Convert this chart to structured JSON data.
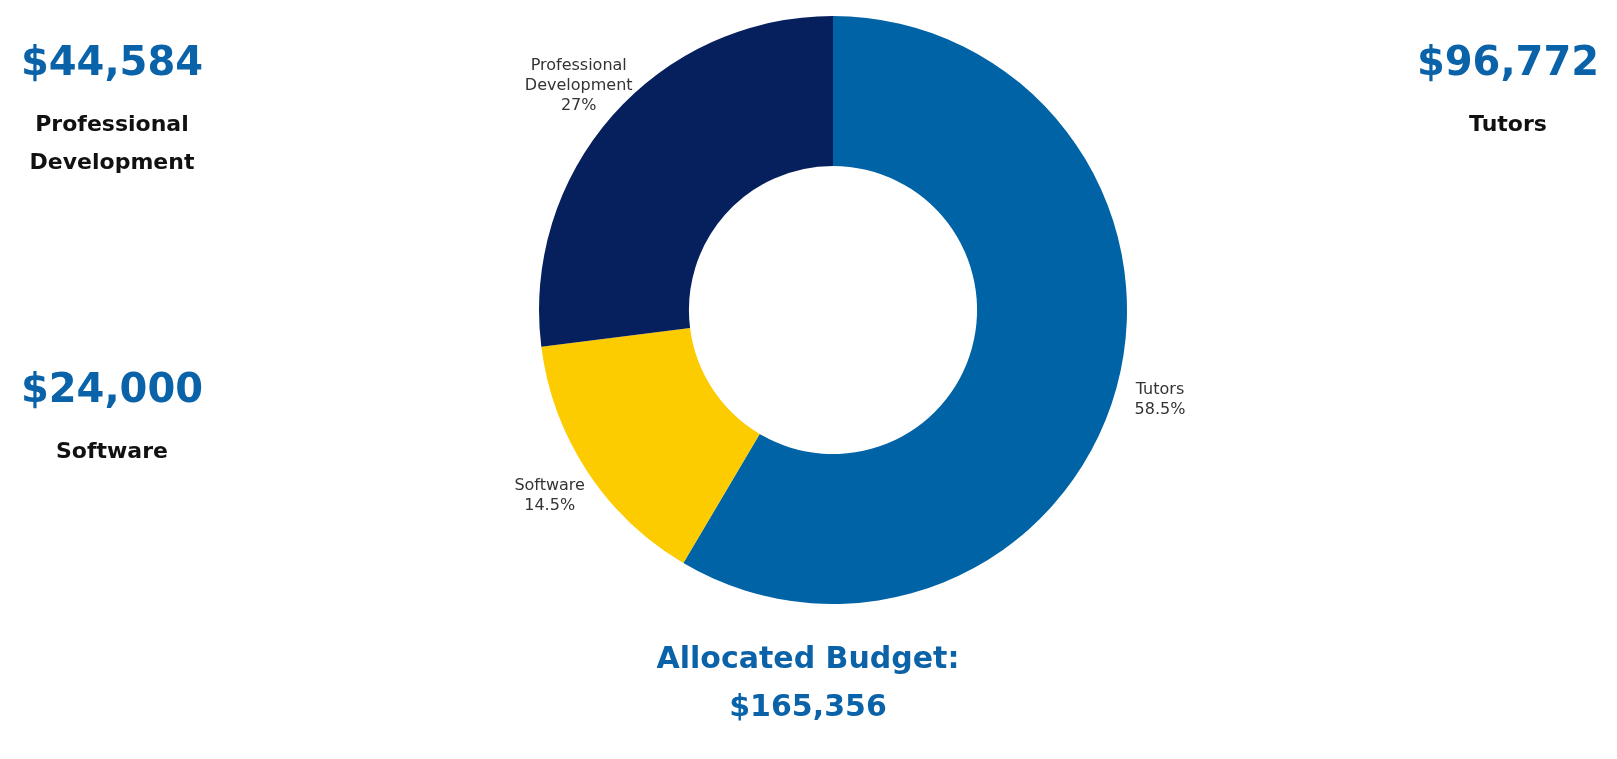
{
  "chart_data": {
    "type": "donut",
    "categories": [
      "Tutors",
      "Software",
      "Professional Development"
    ],
    "values": [
      58.5,
      14.5,
      27
    ],
    "value_labels": [
      "58.5%",
      "14.5%",
      "27%"
    ],
    "colors": [
      "#0063a6",
      "#fccb00",
      "#06205e"
    ],
    "legend": false,
    "annotations": [
      "$44,584",
      "Professional Development",
      "$24,000",
      "Software",
      "$96,772",
      "Tutors",
      "Allocated Budget:",
      "$165,356"
    ]
  }
}
